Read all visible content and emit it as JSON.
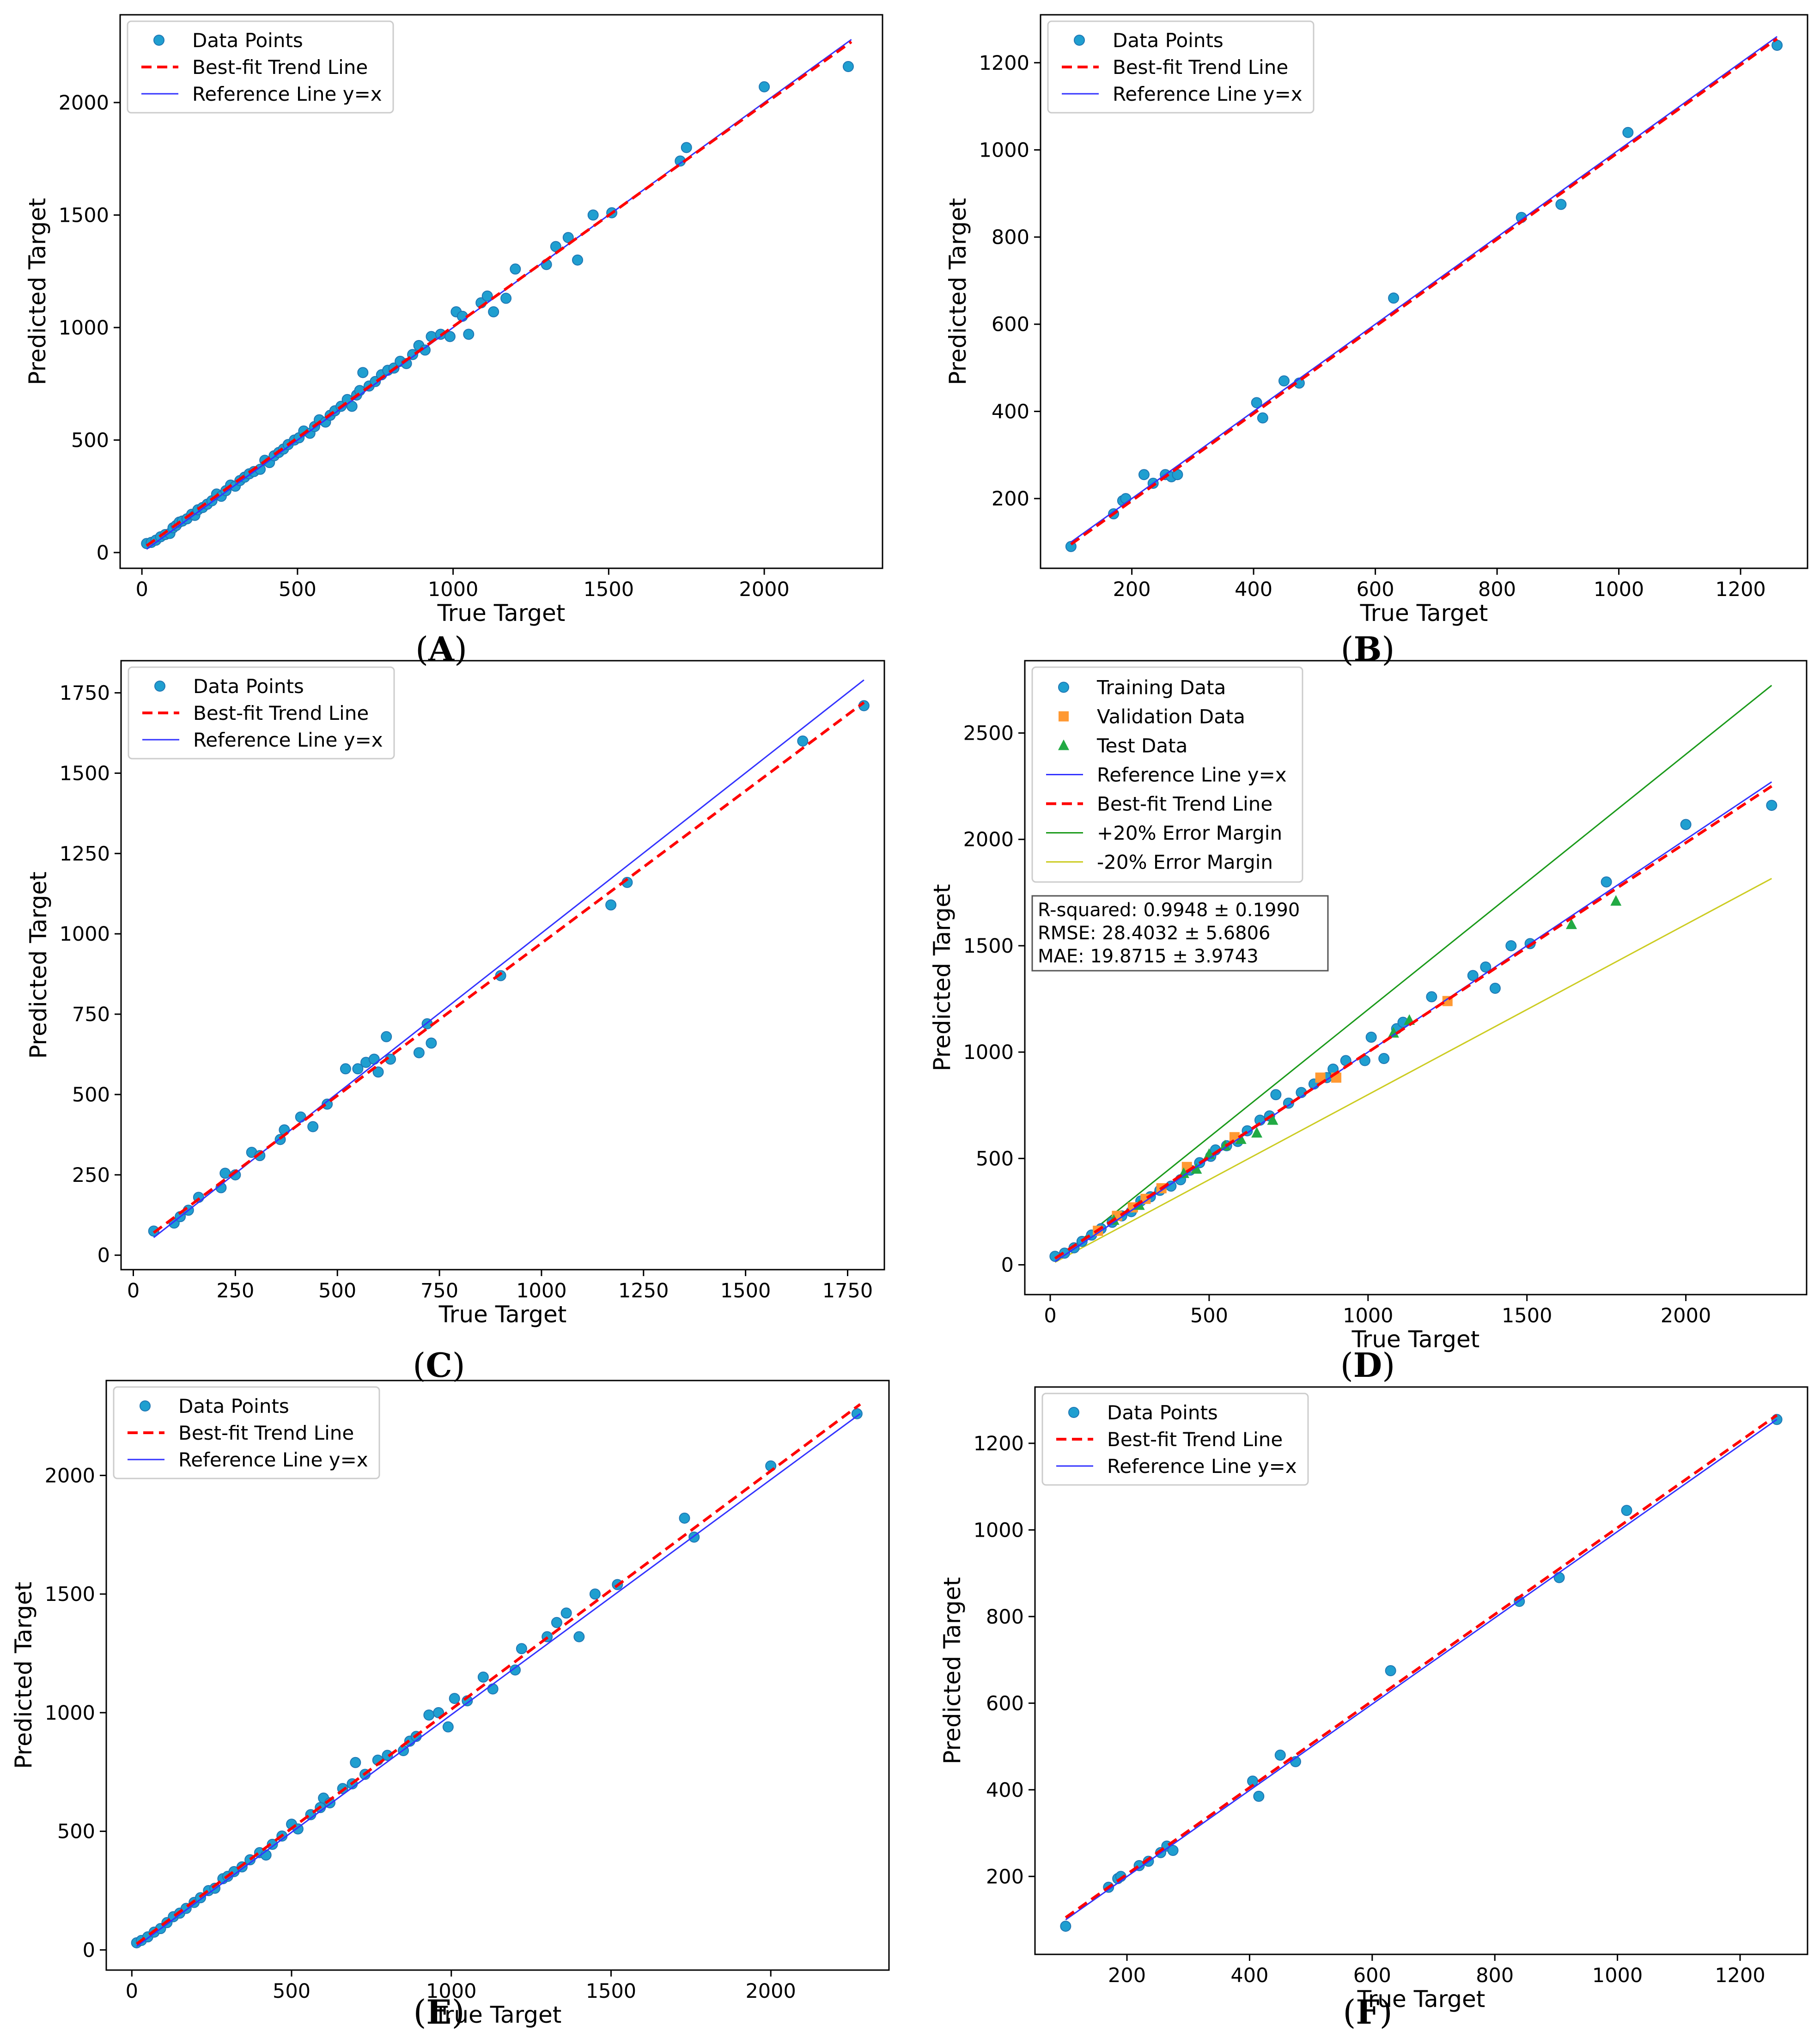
{
  "colors": {
    "data_points": "#1f9fd0",
    "training": "#1f9fd0",
    "validation": "#ff9933",
    "test": "#22aa44",
    "trend": "#ff0000",
    "reference": "#3333ff",
    "plus20": "#1a9a1a",
    "minus20": "#cccc22"
  },
  "chart_data": [
    {
      "id": "A",
      "type": "scatter",
      "caption": "A",
      "xlabel": "True Target",
      "ylabel": "Predicted Target",
      "xlim": [
        -70,
        2380
      ],
      "ylim": [
        -70,
        2390
      ],
      "xticks": [
        0,
        500,
        1000,
        1500,
        2000
      ],
      "yticks": [
        0,
        500,
        1000,
        1500,
        2000
      ],
      "legend": [
        "Data Points",
        "Best-fit Trend Line",
        "Reference Line y=x"
      ],
      "trend": [
        [
          15,
          30
        ],
        [
          2280,
          2270
        ]
      ],
      "reference": [
        [
          15,
          15
        ],
        [
          2280,
          2280
        ]
      ],
      "points": [
        [
          15,
          40
        ],
        [
          30,
          45
        ],
        [
          45,
          55
        ],
        [
          60,
          70
        ],
        [
          75,
          80
        ],
        [
          90,
          85
        ],
        [
          100,
          110
        ],
        [
          110,
          120
        ],
        [
          120,
          135
        ],
        [
          130,
          140
        ],
        [
          145,
          150
        ],
        [
          160,
          170
        ],
        [
          170,
          165
        ],
        [
          180,
          190
        ],
        [
          195,
          200
        ],
        [
          210,
          215
        ],
        [
          225,
          230
        ],
        [
          240,
          260
        ],
        [
          255,
          250
        ],
        [
          270,
          275
        ],
        [
          285,
          300
        ],
        [
          300,
          295
        ],
        [
          315,
          320
        ],
        [
          330,
          335
        ],
        [
          345,
          350
        ],
        [
          360,
          360
        ],
        [
          380,
          370
        ],
        [
          395,
          410
        ],
        [
          410,
          400
        ],
        [
          425,
          430
        ],
        [
          440,
          445
        ],
        [
          455,
          460
        ],
        [
          470,
          480
        ],
        [
          490,
          500
        ],
        [
          505,
          510
        ],
        [
          520,
          540
        ],
        [
          540,
          530
        ],
        [
          555,
          560
        ],
        [
          570,
          590
        ],
        [
          590,
          580
        ],
        [
          605,
          610
        ],
        [
          620,
          630
        ],
        [
          640,
          650
        ],
        [
          660,
          680
        ],
        [
          675,
          650
        ],
        [
          690,
          700
        ],
        [
          700,
          720
        ],
        [
          710,
          800
        ],
        [
          730,
          740
        ],
        [
          750,
          760
        ],
        [
          770,
          790
        ],
        [
          790,
          810
        ],
        [
          810,
          820
        ],
        [
          830,
          850
        ],
        [
          850,
          840
        ],
        [
          870,
          880
        ],
        [
          890,
          920
        ],
        [
          910,
          900
        ],
        [
          930,
          960
        ],
        [
          960,
          970
        ],
        [
          990,
          960
        ],
        [
          1010,
          1070
        ],
        [
          1030,
          1050
        ],
        [
          1050,
          970
        ],
        [
          1090,
          1110
        ],
        [
          1110,
          1140
        ],
        [
          1130,
          1070
        ],
        [
          1170,
          1130
        ],
        [
          1200,
          1260
        ],
        [
          1300,
          1280
        ],
        [
          1330,
          1360
        ],
        [
          1370,
          1400
        ],
        [
          1400,
          1300
        ],
        [
          1450,
          1500
        ],
        [
          1510,
          1510
        ],
        [
          1730,
          1740
        ],
        [
          1750,
          1800
        ],
        [
          2000,
          2070
        ],
        [
          2270,
          2160
        ]
      ]
    },
    {
      "id": "B",
      "type": "scatter",
      "caption": "B",
      "xlabel": "True Target",
      "ylabel": "Predicted Target",
      "xlim": [
        50,
        1310
      ],
      "ylim": [
        40,
        1310
      ],
      "xticks": [
        200,
        400,
        600,
        800,
        1000,
        1200
      ],
      "yticks": [
        200,
        400,
        600,
        800,
        1000,
        1200
      ],
      "legend": [
        "Data Points",
        "Best-fit Trend Line",
        "Reference Line y=x"
      ],
      "trend": [
        [
          100,
          95
        ],
        [
          1260,
          1255
        ]
      ],
      "reference": [
        [
          100,
          100
        ],
        [
          1260,
          1260
        ]
      ],
      "points": [
        [
          100,
          90
        ],
        [
          170,
          165
        ],
        [
          185,
          195
        ],
        [
          190,
          200
        ],
        [
          220,
          255
        ],
        [
          235,
          235
        ],
        [
          255,
          255
        ],
        [
          265,
          250
        ],
        [
          275,
          255
        ],
        [
          405,
          420
        ],
        [
          415,
          385
        ],
        [
          450,
          470
        ],
        [
          475,
          465
        ],
        [
          630,
          660
        ],
        [
          840,
          845
        ],
        [
          905,
          875
        ],
        [
          1015,
          1040
        ],
        [
          1260,
          1240
        ]
      ]
    },
    {
      "id": "C",
      "type": "scatter",
      "caption": "C",
      "xlabel": "True Target",
      "ylabel": "Predicted Target",
      "xlim": [
        -30,
        1840
      ],
      "ylim": [
        -45,
        1850
      ],
      "xticks": [
        0,
        250,
        500,
        750,
        1000,
        1250,
        1500,
        1750
      ],
      "yticks": [
        0,
        250,
        500,
        750,
        1000,
        1250,
        1500,
        1750
      ],
      "legend": [
        "Data Points",
        "Best-fit Trend Line",
        "Reference Line y=x"
      ],
      "trend": [
        [
          50,
          70
        ],
        [
          1790,
          1720
        ]
      ],
      "reference": [
        [
          50,
          55
        ],
        [
          1790,
          1790
        ]
      ],
      "points": [
        [
          50,
          75
        ],
        [
          100,
          100
        ],
        [
          115,
          120
        ],
        [
          135,
          140
        ],
        [
          160,
          180
        ],
        [
          215,
          210
        ],
        [
          225,
          255
        ],
        [
          250,
          250
        ],
        [
          290,
          320
        ],
        [
          310,
          310
        ],
        [
          360,
          360
        ],
        [
          370,
          390
        ],
        [
          410,
          430
        ],
        [
          440,
          400
        ],
        [
          475,
          470
        ],
        [
          520,
          580
        ],
        [
          550,
          580
        ],
        [
          570,
          600
        ],
        [
          590,
          610
        ],
        [
          600,
          570
        ],
        [
          620,
          680
        ],
        [
          630,
          610
        ],
        [
          700,
          630
        ],
        [
          720,
          720
        ],
        [
          730,
          660
        ],
        [
          900,
          870
        ],
        [
          1170,
          1090
        ],
        [
          1210,
          1160
        ],
        [
          1640,
          1600
        ],
        [
          1790,
          1710
        ]
      ]
    },
    {
      "id": "D",
      "type": "scatter",
      "caption": "D",
      "xlabel": "True Target",
      "ylabel": "Predicted Target",
      "xlim": [
        -80,
        2380
      ],
      "ylim": [
        -140,
        2840
      ],
      "xticks": [
        0,
        500,
        1000,
        1500,
        2000
      ],
      "yticks": [
        0,
        500,
        1000,
        1500,
        2000,
        2500
      ],
      "legend": [
        "Training Data",
        "Validation Data",
        "Test Data",
        "Reference Line y=x",
        "Best-fit Trend Line",
        "+20% Error Margin",
        "-20% Error Margin"
      ],
      "stats": [
        "R-squared: 0.9948 ± 0.1990",
        "RMSE: 28.4032 ± 5.6806",
        "MAE: 19.8715 ± 3.9743"
      ],
      "trend": [
        [
          15,
          30
        ],
        [
          2270,
          2250
        ]
      ],
      "reference": [
        [
          15,
          15
        ],
        [
          2270,
          2270
        ]
      ],
      "plus20": [
        [
          15,
          18
        ],
        [
          2270,
          2724
        ]
      ],
      "minus20": [
        [
          15,
          12
        ],
        [
          2270,
          1816
        ]
      ],
      "training": [
        [
          15,
          40
        ],
        [
          45,
          55
        ],
        [
          75,
          80
        ],
        [
          100,
          110
        ],
        [
          130,
          140
        ],
        [
          160,
          170
        ],
        [
          195,
          200
        ],
        [
          225,
          230
        ],
        [
          255,
          250
        ],
        [
          285,
          300
        ],
        [
          315,
          320
        ],
        [
          345,
          350
        ],
        [
          380,
          370
        ],
        [
          410,
          400
        ],
        [
          440,
          445
        ],
        [
          470,
          480
        ],
        [
          505,
          510
        ],
        [
          520,
          540
        ],
        [
          555,
          560
        ],
        [
          590,
          580
        ],
        [
          620,
          630
        ],
        [
          660,
          680
        ],
        [
          690,
          700
        ],
        [
          710,
          800
        ],
        [
          750,
          760
        ],
        [
          790,
          810
        ],
        [
          830,
          850
        ],
        [
          870,
          880
        ],
        [
          890,
          920
        ],
        [
          930,
          960
        ],
        [
          990,
          960
        ],
        [
          1010,
          1070
        ],
        [
          1050,
          970
        ],
        [
          1090,
          1110
        ],
        [
          1110,
          1140
        ],
        [
          1200,
          1260
        ],
        [
          1330,
          1360
        ],
        [
          1370,
          1400
        ],
        [
          1400,
          1300
        ],
        [
          1450,
          1500
        ],
        [
          1510,
          1510
        ],
        [
          1750,
          1800
        ],
        [
          2000,
          2070
        ],
        [
          2270,
          2160
        ]
      ],
      "validation": [
        [
          150,
          160
        ],
        [
          210,
          230
        ],
        [
          260,
          270
        ],
        [
          300,
          310
        ],
        [
          350,
          360
        ],
        [
          430,
          460
        ],
        [
          580,
          600
        ],
        [
          850,
          880
        ],
        [
          900,
          880
        ],
        [
          1250,
          1240
        ]
      ],
      "test": [
        [
          200,
          210
        ],
        [
          280,
          280
        ],
        [
          420,
          430
        ],
        [
          460,
          450
        ],
        [
          500,
          520
        ],
        [
          550,
          560
        ],
        [
          600,
          590
        ],
        [
          650,
          620
        ],
        [
          700,
          680
        ],
        [
          1080,
          1090
        ],
        [
          1130,
          1150
        ],
        [
          1640,
          1600
        ],
        [
          1780,
          1710
        ]
      ]
    },
    {
      "id": "E",
      "type": "scatter",
      "caption": "E",
      "xlabel": "True Target",
      "ylabel": "Predicted Target",
      "xlim": [
        -80,
        2370
      ],
      "ylim": [
        -85,
        2400
      ],
      "xticks": [
        0,
        500,
        1000,
        1500,
        2000
      ],
      "yticks": [
        0,
        500,
        1000,
        1500,
        2000
      ],
      "legend": [
        "Data Points",
        "Best-fit Trend Line",
        "Reference Line y=x"
      ],
      "trend": [
        [
          15,
          25
        ],
        [
          2280,
          2300
        ]
      ],
      "reference": [
        [
          15,
          15
        ],
        [
          2280,
          2260
        ]
      ],
      "points": [
        [
          15,
          30
        ],
        [
          30,
          40
        ],
        [
          50,
          55
        ],
        [
          70,
          75
        ],
        [
          90,
          90
        ],
        [
          110,
          115
        ],
        [
          130,
          140
        ],
        [
          150,
          155
        ],
        [
          170,
          175
        ],
        [
          195,
          200
        ],
        [
          215,
          220
        ],
        [
          240,
          250
        ],
        [
          260,
          260
        ],
        [
          285,
          300
        ],
        [
          300,
          310
        ],
        [
          320,
          330
        ],
        [
          345,
          350
        ],
        [
          370,
          380
        ],
        [
          400,
          410
        ],
        [
          420,
          400
        ],
        [
          440,
          445
        ],
        [
          470,
          480
        ],
        [
          500,
          530
        ],
        [
          520,
          510
        ],
        [
          560,
          570
        ],
        [
          590,
          600
        ],
        [
          600,
          640
        ],
        [
          620,
          620
        ],
        [
          660,
          680
        ],
        [
          690,
          700
        ],
        [
          700,
          790
        ],
        [
          730,
          740
        ],
        [
          770,
          800
        ],
        [
          800,
          820
        ],
        [
          850,
          840
        ],
        [
          870,
          880
        ],
        [
          890,
          900
        ],
        [
          930,
          990
        ],
        [
          960,
          1000
        ],
        [
          990,
          940
        ],
        [
          1010,
          1060
        ],
        [
          1050,
          1050
        ],
        [
          1100,
          1150
        ],
        [
          1130,
          1100
        ],
        [
          1200,
          1180
        ],
        [
          1220,
          1270
        ],
        [
          1300,
          1320
        ],
        [
          1330,
          1380
        ],
        [
          1360,
          1420
        ],
        [
          1400,
          1320
        ],
        [
          1450,
          1500
        ],
        [
          1520,
          1540
        ],
        [
          1730,
          1820
        ],
        [
          1760,
          1740
        ],
        [
          2000,
          2040
        ],
        [
          2270,
          2260
        ]
      ]
    },
    {
      "id": "F",
      "type": "scatter",
      "caption": "F",
      "xlabel": "True Target",
      "ylabel": "Predicted Target",
      "xlim": [
        50,
        1310
      ],
      "ylim": [
        20,
        1330
      ],
      "xticks": [
        200,
        400,
        600,
        800,
        1000,
        1200
      ],
      "yticks": [
        200,
        400,
        600,
        800,
        1000,
        1200
      ],
      "legend": [
        "Data Points",
        "Best-fit Trend Line",
        "Reference Line y=x"
      ],
      "trend": [
        [
          100,
          105
        ],
        [
          1260,
          1265
        ]
      ],
      "reference": [
        [
          100,
          100
        ],
        [
          1260,
          1255
        ]
      ],
      "points": [
        [
          100,
          85
        ],
        [
          170,
          175
        ],
        [
          185,
          195
        ],
        [
          190,
          200
        ],
        [
          220,
          225
        ],
        [
          235,
          235
        ],
        [
          255,
          255
        ],
        [
          265,
          270
        ],
        [
          275,
          260
        ],
        [
          405,
          420
        ],
        [
          415,
          385
        ],
        [
          450,
          480
        ],
        [
          475,
          465
        ],
        [
          630,
          675
        ],
        [
          840,
          835
        ],
        [
          905,
          890
        ],
        [
          1015,
          1045
        ],
        [
          1260,
          1255
        ]
      ]
    }
  ]
}
